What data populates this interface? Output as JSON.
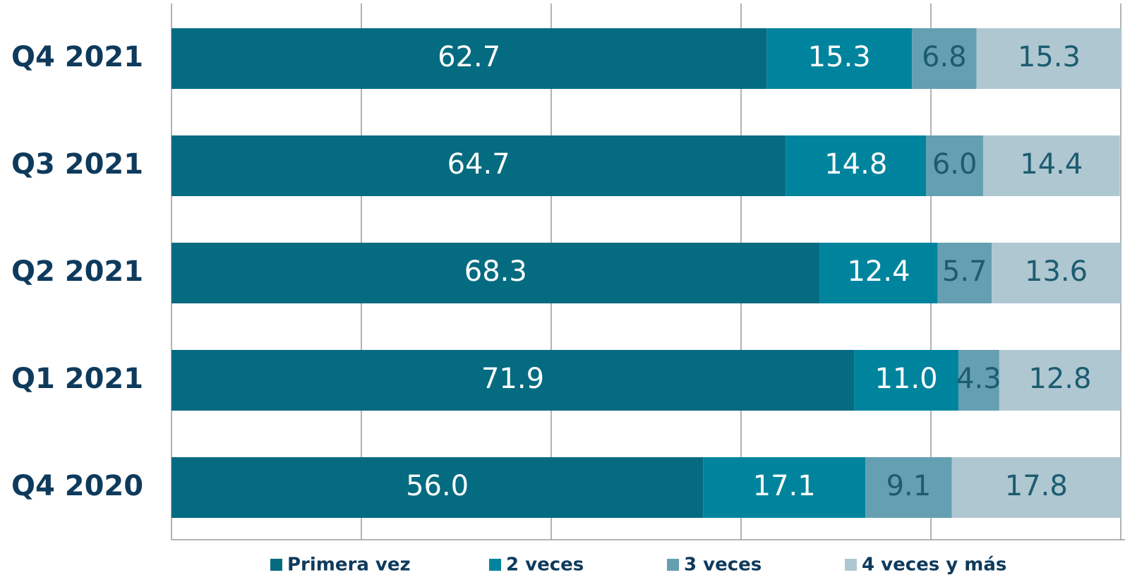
{
  "chart_data": {
    "type": "stacked_barh",
    "categories": [
      "Q4 2021",
      "Q3 2021",
      "Q2 2021",
      "Q1 2021",
      "Q4 2020"
    ],
    "series": [
      {
        "name": "Primera vez",
        "color": "#046b81",
        "label_color": "#ffffff",
        "values": [
          62.7,
          64.7,
          68.3,
          71.9,
          56.0
        ],
        "value_labels": [
          "62.7",
          "64.7",
          "68.3",
          "71.9",
          "56.0"
        ]
      },
      {
        "name": "2 veces",
        "color": "#00849e",
        "label_color": "#ffffff",
        "values": [
          15.3,
          14.8,
          12.4,
          11.0,
          17.1
        ],
        "value_labels": [
          "15.3",
          "14.8",
          "12.4",
          "11.0",
          "17.1"
        ]
      },
      {
        "name": "3 veces",
        "color": "#649fb2",
        "label_color": "#1c5c70",
        "values": [
          6.8,
          6.0,
          5.7,
          4.3,
          9.1
        ],
        "value_labels": [
          "6.8",
          "6.0",
          "5.7",
          "4.3",
          "9.1"
        ]
      },
      {
        "name": "4 veces y más",
        "color": "#afc7d1",
        "label_color": "#1c5c70",
        "values": [
          15.3,
          14.4,
          13.6,
          12.8,
          17.8
        ],
        "value_labels": [
          "15.3",
          "14.4",
          "13.6",
          "12.8",
          "17.8"
        ]
      }
    ],
    "xlim": [
      0,
      100
    ],
    "xticks": [
      0,
      20,
      40,
      60,
      80,
      100
    ],
    "grid": true,
    "legend": "bottom"
  }
}
